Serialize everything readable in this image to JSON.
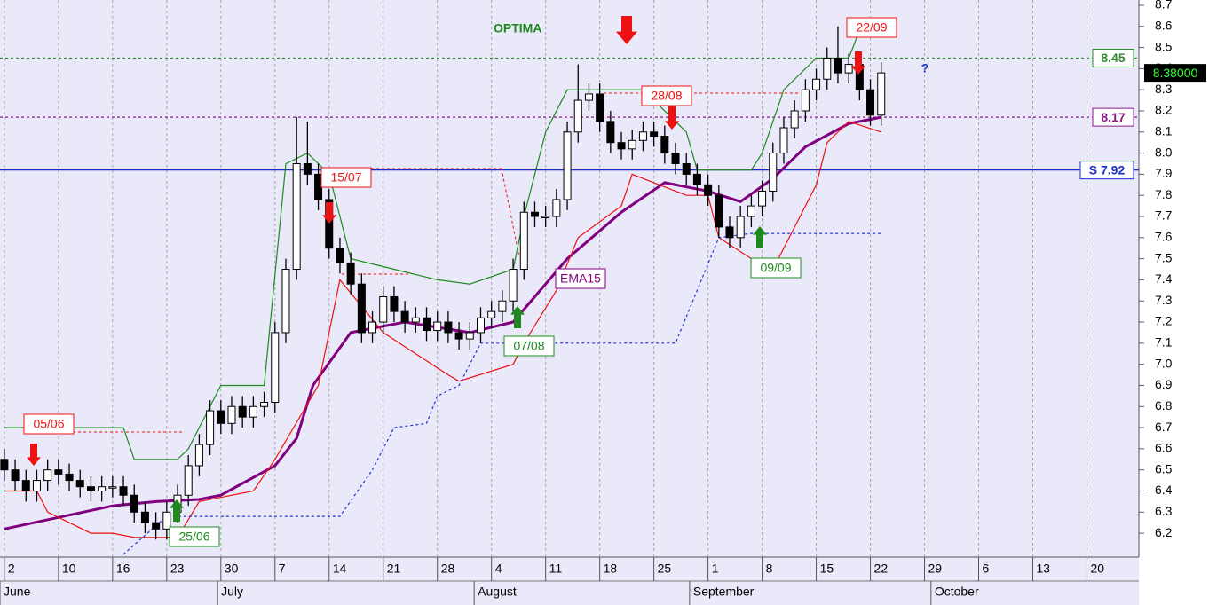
{
  "chart_data": {
    "type": "candlestick",
    "title": "OPTIMA",
    "ylim": [
      6.087,
      8.725
    ],
    "yticks": [
      6.2,
      6.3,
      6.4,
      6.5,
      6.6,
      6.7,
      6.8,
      6.9,
      {
        "value": 7,
        "label": "7.0"
      },
      7.1,
      7.2,
      7.3,
      7.4,
      7.5,
      7.6,
      7.7,
      7.8,
      7.9,
      {
        "value": 8,
        "label": "8.0"
      },
      8.1,
      8.2,
      8.3,
      8.4,
      8.5,
      8.6,
      8.7
    ],
    "xlim": [
      -0.4,
      104.8
    ],
    "xticks": [
      {
        "value": 0,
        "label": "2"
      },
      {
        "value": 5,
        "label": "10"
      },
      {
        "value": 10,
        "label": "16"
      },
      {
        "value": 15,
        "label": "23"
      },
      {
        "value": 20,
        "label": "30"
      },
      {
        "value": 25,
        "label": "7"
      },
      {
        "value": 30,
        "label": "14"
      },
      {
        "value": 35,
        "label": "21"
      },
      {
        "value": 40,
        "label": "28"
      },
      {
        "value": 45,
        "label": "4"
      },
      {
        "value": 50,
        "label": "11"
      },
      {
        "value": 55,
        "label": "18"
      },
      {
        "value": 60,
        "label": "25"
      },
      {
        "value": 65,
        "label": "1"
      },
      {
        "value": 70,
        "label": "8"
      },
      {
        "value": 75,
        "label": "15"
      },
      {
        "value": 80,
        "label": "22"
      },
      {
        "value": 85,
        "label": "29"
      },
      {
        "value": 90,
        "label": "6"
      },
      {
        "value": 95,
        "label": "13"
      },
      {
        "value": 100,
        "label": "20"
      }
    ],
    "month_labels": [
      {
        "value": -0.4,
        "label": "June"
      },
      {
        "value": 19.7,
        "label": "July"
      },
      {
        "value": 43.4,
        "label": "August"
      },
      {
        "value": 63.3,
        "label": "September"
      },
      {
        "value": 85.6,
        "label": "October"
      }
    ],
    "grid": true,
    "up_color": "#ffffff",
    "down_color": "#000000",
    "open": [
      6.55,
      6.5,
      6.45,
      6.4,
      6.45,
      6.5,
      6.48,
      6.45,
      6.42,
      6.4,
      6.42,
      6.42,
      6.38,
      6.3,
      6.25,
      6.22,
      6.3,
      6.38,
      6.52,
      6.62,
      6.78,
      6.72,
      6.8,
      6.75,
      6.8,
      6.82,
      7.15,
      7.45,
      7.95,
      7.9,
      7.78,
      7.55,
      7.48,
      7.38,
      7.15,
      7.2,
      7.32,
      7.25,
      7.2,
      7.22,
      7.16,
      7.2,
      7.15,
      7.12,
      7.15,
      7.22,
      7.25,
      7.3,
      7.45,
      7.72,
      7.7,
      7.7,
      7.78,
      8.1,
      8.25,
      8.28,
      8.15,
      8.05,
      8.02,
      8.06,
      8.1,
      8.08,
      8.0,
      7.95,
      7.9,
      7.85,
      7.8,
      7.65,
      7.6,
      7.7,
      7.75,
      7.82,
      8.0,
      8.12,
      8.2,
      8.3,
      8.35,
      8.45,
      8.38,
      8.42,
      8.3,
      8.18
    ],
    "high": [
      6.6,
      6.55,
      6.5,
      6.5,
      6.55,
      6.55,
      6.53,
      6.5,
      6.47,
      6.47,
      6.47,
      6.47,
      6.43,
      6.35,
      6.3,
      6.35,
      6.43,
      6.57,
      6.67,
      6.83,
      6.83,
      6.85,
      6.85,
      6.85,
      6.87,
      7.2,
      7.5,
      8.17,
      8.15,
      7.95,
      7.83,
      7.6,
      7.53,
      7.43,
      7.25,
      7.37,
      7.37,
      7.3,
      7.27,
      7.27,
      7.25,
      7.25,
      7.2,
      7.2,
      7.27,
      7.3,
      7.35,
      7.5,
      7.77,
      7.77,
      7.75,
      7.83,
      8.15,
      8.42,
      8.33,
      8.33,
      8.2,
      8.1,
      8.11,
      8.15,
      8.15,
      8.13,
      8.05,
      8.0,
      7.95,
      7.9,
      7.85,
      7.7,
      7.75,
      7.8,
      7.87,
      8.05,
      8.17,
      8.25,
      8.35,
      8.4,
      8.5,
      8.6,
      8.47,
      8.47,
      8.35,
      8.43
    ],
    "low": [
      6.45,
      6.4,
      6.35,
      6.35,
      6.4,
      6.43,
      6.4,
      6.37,
      6.35,
      6.35,
      6.37,
      6.33,
      6.25,
      6.2,
      6.17,
      6.17,
      6.25,
      6.33,
      6.47,
      6.57,
      6.67,
      6.67,
      6.7,
      6.7,
      6.75,
      6.77,
      7.1,
      7.4,
      7.85,
      7.73,
      7.5,
      7.43,
      7.33,
      7.1,
      7.1,
      7.15,
      7.2,
      7.15,
      7.15,
      7.11,
      7.11,
      7.1,
      7.07,
      7.07,
      7.1,
      7.17,
      7.2,
      7.25,
      7.4,
      7.65,
      7.65,
      7.65,
      7.73,
      8.05,
      8.2,
      8.1,
      8.0,
      7.97,
      7.97,
      8.01,
      8.03,
      7.95,
      7.9,
      7.85,
      7.8,
      7.75,
      7.6,
      7.55,
      7.55,
      7.65,
      7.7,
      7.77,
      7.95,
      8.07,
      8.15,
      8.25,
      8.3,
      8.33,
      8.33,
      8.25,
      8.13,
      8.13
    ],
    "close": [
      6.5,
      6.45,
      6.4,
      6.45,
      6.5,
      6.48,
      6.45,
      6.42,
      6.4,
      6.42,
      6.42,
      6.38,
      6.3,
      6.25,
      6.22,
      6.3,
      6.38,
      6.52,
      6.62,
      6.78,
      6.72,
      6.8,
      6.75,
      6.8,
      6.82,
      7.15,
      7.45,
      7.95,
      7.9,
      7.78,
      7.55,
      7.48,
      7.38,
      7.15,
      7.2,
      7.32,
      7.25,
      7.2,
      7.22,
      7.16,
      7.2,
      7.15,
      7.12,
      7.15,
      7.22,
      7.25,
      7.3,
      7.45,
      7.72,
      7.7,
      7.7,
      7.78,
      8.1,
      8.25,
      8.28,
      8.15,
      8.05,
      8.02,
      8.06,
      8.1,
      8.08,
      8.0,
      7.95,
      7.9,
      7.85,
      7.8,
      7.65,
      7.6,
      7.7,
      7.75,
      7.82,
      8.0,
      8.12,
      8.2,
      8.3,
      8.35,
      8.45,
      8.38,
      8.42,
      8.3,
      8.18,
      8.38
    ],
    "lines": [
      {
        "name": "EMA15",
        "color": "#800080",
        "width": 3,
        "dash": "none",
        "x": [
          0,
          10,
          14,
          18,
          20,
          25,
          27,
          28.5,
          32,
          37,
          43,
          47,
          52,
          57,
          61,
          65,
          68,
          71,
          74,
          78,
          81
        ],
        "values": [
          6.22,
          6.33,
          6.35,
          6.36,
          6.38,
          6.52,
          6.65,
          6.9,
          7.15,
          7.2,
          7.15,
          7.2,
          7.5,
          7.72,
          7.86,
          7.82,
          7.77,
          7.88,
          8.03,
          8.14,
          8.17
        ]
      },
      {
        "color": "#1e8a1e",
        "width": 1.2,
        "dash": "none",
        "x": [
          0,
          11,
          12,
          16,
          17,
          20,
          24,
          26,
          28,
          30,
          32,
          36,
          40,
          43,
          47,
          48,
          50,
          52,
          53,
          59,
          63,
          64,
          69,
          70,
          72,
          75,
          78,
          79
        ],
        "values": [
          6.7,
          6.7,
          6.55,
          6.55,
          6.6,
          6.9,
          6.9,
          7.95,
          8.0,
          7.9,
          7.5,
          7.45,
          7.4,
          7.38,
          7.45,
          7.7,
          8.1,
          8.3,
          8.3,
          8.3,
          8.1,
          7.92,
          7.92,
          8.0,
          8.3,
          8.45,
          8.45,
          8.58
        ]
      },
      {
        "color": "#ee1111",
        "width": 1.2,
        "dash": "none",
        "x": [
          0,
          3,
          4,
          6,
          8,
          10,
          12,
          16,
          18,
          23,
          25,
          29,
          31,
          35,
          38,
          41,
          42,
          47,
          48,
          51,
          53,
          57,
          58,
          63,
          65,
          66,
          69,
          71,
          73,
          75,
          76,
          78,
          81
        ],
        "values": [
          6.4,
          6.4,
          6.3,
          6.25,
          6.2,
          6.2,
          6.18,
          6.18,
          6.35,
          6.4,
          6.55,
          6.9,
          7.4,
          7.15,
          7.05,
          6.95,
          6.92,
          7.0,
          7.1,
          7.35,
          7.6,
          7.75,
          7.9,
          7.8,
          7.8,
          7.6,
          7.5,
          7.45,
          7.65,
          7.85,
          8.05,
          8.15,
          8.1
        ]
      },
      {
        "color": "#2233dd",
        "width": 1.2,
        "dash": "3 3",
        "x": [
          11,
          15,
          31,
          34,
          36,
          39,
          40,
          42,
          44,
          62,
          66,
          69,
          81
        ],
        "values": [
          6.1,
          6.28,
          6.28,
          6.5,
          6.7,
          6.72,
          6.85,
          6.9,
          7.1,
          7.1,
          7.6,
          7.62,
          7.62
        ]
      }
    ],
    "levels": [
      {
        "value": 8.45,
        "label": "8.45",
        "color": "#2e8b2e",
        "dash": "3 3"
      },
      {
        "value": 8.17,
        "label": "8.17",
        "color": "#8b1a8b",
        "dash": "3 3"
      },
      {
        "value": 7.92,
        "label": "S 7.92",
        "color": "#1a2ecc",
        "dash": "none"
      }
    ],
    "last_price": {
      "value": 8.38,
      "label": "8.38000"
    },
    "annotations": [
      {
        "text": "05/06",
        "color": "#ee1111"
      },
      {
        "text": "25/06",
        "color": "#1e8a1e"
      },
      {
        "text": "15/07",
        "color": "#ee1111"
      },
      {
        "text": "07/08",
        "color": "#1e8a1e"
      },
      {
        "text": "28/08",
        "color": "#ee1111"
      },
      {
        "text": "09/09",
        "color": "#1e8a1e"
      },
      {
        "text": "22/09",
        "color": "#ee1111"
      },
      {
        "text": "EMA15",
        "color": "#800080"
      },
      {
        "text": "?",
        "color": "#1a2ecc"
      }
    ]
  }
}
